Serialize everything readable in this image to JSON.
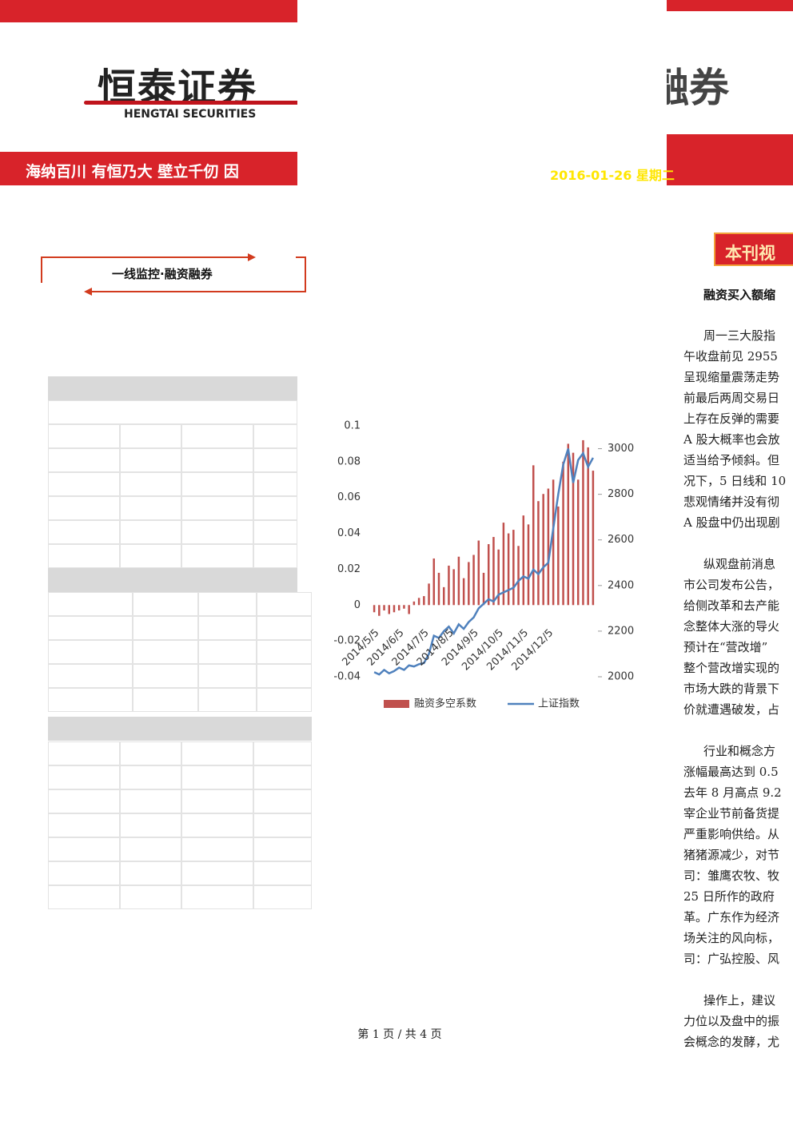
{
  "header": {
    "logo": "恒泰证券",
    "logo_en": "HENGTAI SECURITIES",
    "slogan": "海纳百川 有恒乃大 壁立千仞 因",
    "right_logo": "融券",
    "date": "2016-01-26 星期二"
  },
  "section_box": "一线监控·融资融券",
  "chart_data": {
    "type": "bar-line",
    "categories": [
      "2014/5/5",
      null,
      null,
      null,
      null,
      "2014/6/5",
      null,
      null,
      null,
      null,
      "2014/7/5",
      null,
      null,
      null,
      null,
      "2014/8/5",
      null,
      null,
      null,
      null,
      "2014/9/5",
      null,
      null,
      null,
      null,
      "2014/10/5",
      null,
      null,
      null,
      null,
      "2014/11/5",
      null,
      null,
      null,
      null,
      "2014/12/5",
      null,
      null,
      null,
      null,
      null,
      null,
      null,
      null,
      null
    ],
    "series": [
      {
        "name": "融资多空系数",
        "color": "#c0504d",
        "values": [
          -0.004,
          -0.006,
          -0.003,
          -0.005,
          -0.004,
          -0.003,
          -0.002,
          -0.005,
          0.002,
          0.004,
          0.005,
          0.012,
          0.026,
          0.018,
          0.01,
          0.022,
          0.02,
          0.027,
          0.015,
          0.024,
          0.028,
          0.036,
          0.018,
          0.034,
          0.038,
          0.031,
          0.046,
          0.04,
          0.042,
          0.033,
          0.05,
          0.045,
          0.078,
          0.058,
          0.062,
          0.065,
          0.07,
          0.055,
          0.08,
          0.09,
          0.085,
          0.07,
          0.092,
          0.088,
          0.075
        ]
      },
      {
        "name": "上证指数",
        "color": "#4f81bd",
        "axis": "y2",
        "values": [
          2020,
          2010,
          2030,
          2015,
          2025,
          2040,
          2030,
          2050,
          2045,
          2055,
          2060,
          2100,
          2180,
          2170,
          2200,
          2220,
          2190,
          2230,
          2210,
          2240,
          2260,
          2300,
          2320,
          2340,
          2330,
          2360,
          2370,
          2380,
          2390,
          2420,
          2440,
          2430,
          2470,
          2450,
          2480,
          2500,
          2650,
          2800,
          2930,
          3000,
          2850,
          2950,
          2980,
          2920,
          2960
        ]
      }
    ],
    "ylim": [
      -0.04,
      0.1
    ],
    "yticks": [
      -0.04,
      -0.02,
      0,
      0.02,
      0.04,
      0.06,
      0.08,
      0.1
    ],
    "y2lim": [
      2000,
      3100
    ],
    "y2ticks": [
      2000,
      2200,
      2400,
      2600,
      2800,
      3000
    ]
  },
  "article": {
    "tag": "本刊视",
    "heading": "融资买入额缩",
    "paragraphs": [
      [
        "周一三大股指",
        "午收盘前见 2955",
        "呈现缩量震荡走势",
        "前最后两周交易日",
        "上存在反弹的需要",
        "A 股大概率也会放",
        "适当给予倾斜。但",
        "况下，5 日线和 10",
        "悲观情绪并没有彻",
        "A 股盘中仍出现剧"
      ],
      [
        "纵观盘前消息",
        "市公司发布公告，",
        "给侧改革和去产能",
        "念整体大涨的导火",
        "预计在“营改增”",
        "整个营改增实现的",
        "市场大跌的背景下",
        "价就遭遇破发，占"
      ],
      [
        "行业和概念方",
        "涨幅最高达到 0.5",
        "去年 8 月高点 9.2",
        "宰企业节前备货提",
        "严重影响供给。从",
        "猪猪源减少，对节",
        "司：雏鹰农牧、牧",
        "25 日所作的政府",
        "革。广东作为经济",
        "场关注的风向标，",
        "司：广弘控股、风"
      ],
      [
        "操作上，建议",
        "力位以及盘中的振",
        "会概念的发酵，尤"
      ]
    ]
  },
  "footer": "第 1 页 / 共 4 页"
}
